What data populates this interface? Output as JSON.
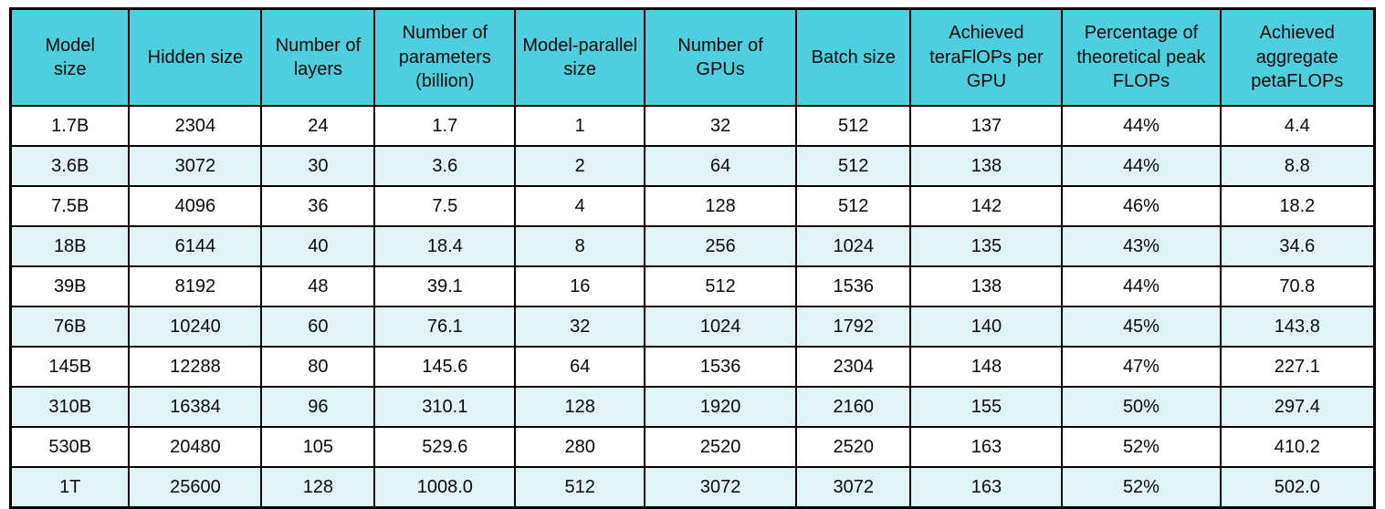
{
  "chart_data": {
    "type": "table",
    "columns": [
      "Model size",
      "Hidden size",
      "Number of layers",
      "Number of parameters (billion)",
      "Model-parallel size",
      "Number of GPUs",
      "Batch size",
      "Achieved teraFlOPs per GPU",
      "Percentage of theoretical peak FLOPs",
      "Achieved aggregate petaFLOPs"
    ],
    "rows": [
      [
        "1.7B",
        "2304",
        "24",
        "1.7",
        "1",
        "32",
        "512",
        "137",
        "44%",
        "4.4"
      ],
      [
        "3.6B",
        "3072",
        "30",
        "3.6",
        "2",
        "64",
        "512",
        "138",
        "44%",
        "8.8"
      ],
      [
        "7.5B",
        "4096",
        "36",
        "7.5",
        "4",
        "128",
        "512",
        "142",
        "46%",
        "18.2"
      ],
      [
        "18B",
        "6144",
        "40",
        "18.4",
        "8",
        "256",
        "1024",
        "135",
        "43%",
        "34.6"
      ],
      [
        "39B",
        "8192",
        "48",
        "39.1",
        "16",
        "512",
        "1536",
        "138",
        "44%",
        "70.8"
      ],
      [
        "76B",
        "10240",
        "60",
        "76.1",
        "32",
        "1024",
        "1792",
        "140",
        "45%",
        "143.8"
      ],
      [
        "145B",
        "12288",
        "80",
        "145.6",
        "64",
        "1536",
        "2304",
        "148",
        "47%",
        "227.1"
      ],
      [
        "310B",
        "16384",
        "96",
        "310.1",
        "128",
        "1920",
        "2160",
        "155",
        "50%",
        "297.4"
      ],
      [
        "530B",
        "20480",
        "105",
        "529.6",
        "280",
        "2520",
        "2520",
        "163",
        "52%",
        "410.2"
      ],
      [
        "1T",
        "25600",
        "128",
        "1008.0",
        "512",
        "3072",
        "3072",
        "163",
        "52%",
        "502.0"
      ]
    ]
  },
  "colors": {
    "header_bg": "#4DCFE0",
    "row_even_bg": "#E0F4F8",
    "row_odd_bg": "#FFFFFF",
    "border": "#000000",
    "text": "#0A0A0A",
    "page_bg": "#FFFFFF"
  }
}
